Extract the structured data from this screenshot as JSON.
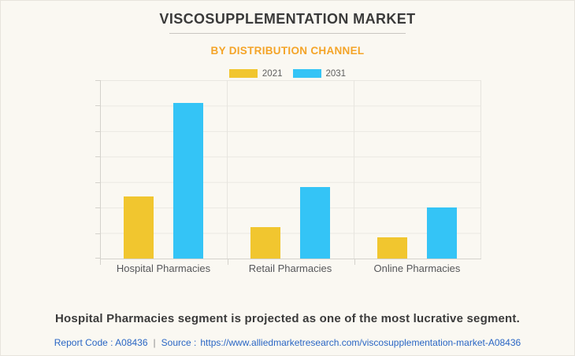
{
  "page": {
    "title": "VISCOSUPPLEMENTATION MARKET",
    "subtitle": "BY DISTRIBUTION CHANNEL"
  },
  "legend": [
    {
      "label": "2021",
      "color": "#f1c62f"
    },
    {
      "label": "2031",
      "color": "#34c4f6"
    }
  ],
  "chart_data": {
    "type": "bar",
    "title": "VISCOSUPPLEMENTATION MARKET",
    "subtitle": "BY DISTRIBUTION CHANNEL",
    "categories": [
      "Hospital Pharmacies",
      "Retail Pharmacies",
      "Online Pharmacies"
    ],
    "series": [
      {
        "name": "2021",
        "color": "#f1c62f",
        "values": [
          34.7,
          17.8,
          12.0
        ]
      },
      {
        "name": "2031",
        "color": "#34c4f6",
        "values": [
          87.2,
          40.3,
          28.5
        ]
      }
    ],
    "value_note": "no numeric y-axis labels shown; values are % of plot height",
    "xlabel": "",
    "ylabel": "",
    "ylim": [
      0,
      100
    ],
    "grid": true,
    "y_gridlines": 8,
    "legend_position": "top"
  },
  "footer": {
    "headline": "Hospital Pharmacies segment is projected as one of the most lucrative segment.",
    "report_code": "Report Code : A08436",
    "separator": "|",
    "source_prefix": "Source :",
    "source_url": "https://www.alliedmarketresearch.com/viscosupplementation-market-A08436"
  },
  "colors": {
    "background": "#faf8f2",
    "title_text": "#3a3a3a",
    "subtitle_orange": "#f4a428",
    "bar_2021": "#f1c62f",
    "bar_2031": "#34c4f6",
    "axis": "#d4d2cc",
    "gridline": "#eae8e2",
    "link_blue": "#2a66c4"
  }
}
